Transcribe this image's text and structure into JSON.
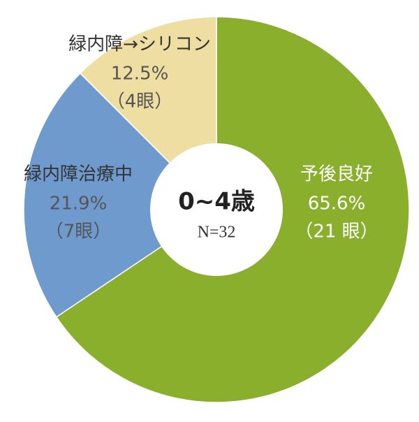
{
  "chart_data": {
    "type": "donut",
    "center_title": "0~4歳",
    "center_subtitle": "N=32",
    "categories": [
      "予後良好",
      "緑内障治療中",
      "緑内障→シリコン"
    ],
    "values": [
      65.6,
      21.9,
      12.5
    ],
    "value_labels": [
      "65.6%",
      "21.9%",
      "12.5%"
    ],
    "count_labels": [
      "（21 眼）",
      "（7眼）",
      "（4眼）"
    ],
    "colors": [
      "#8aaf2d",
      "#6e9ace",
      "#efdea2"
    ]
  }
}
